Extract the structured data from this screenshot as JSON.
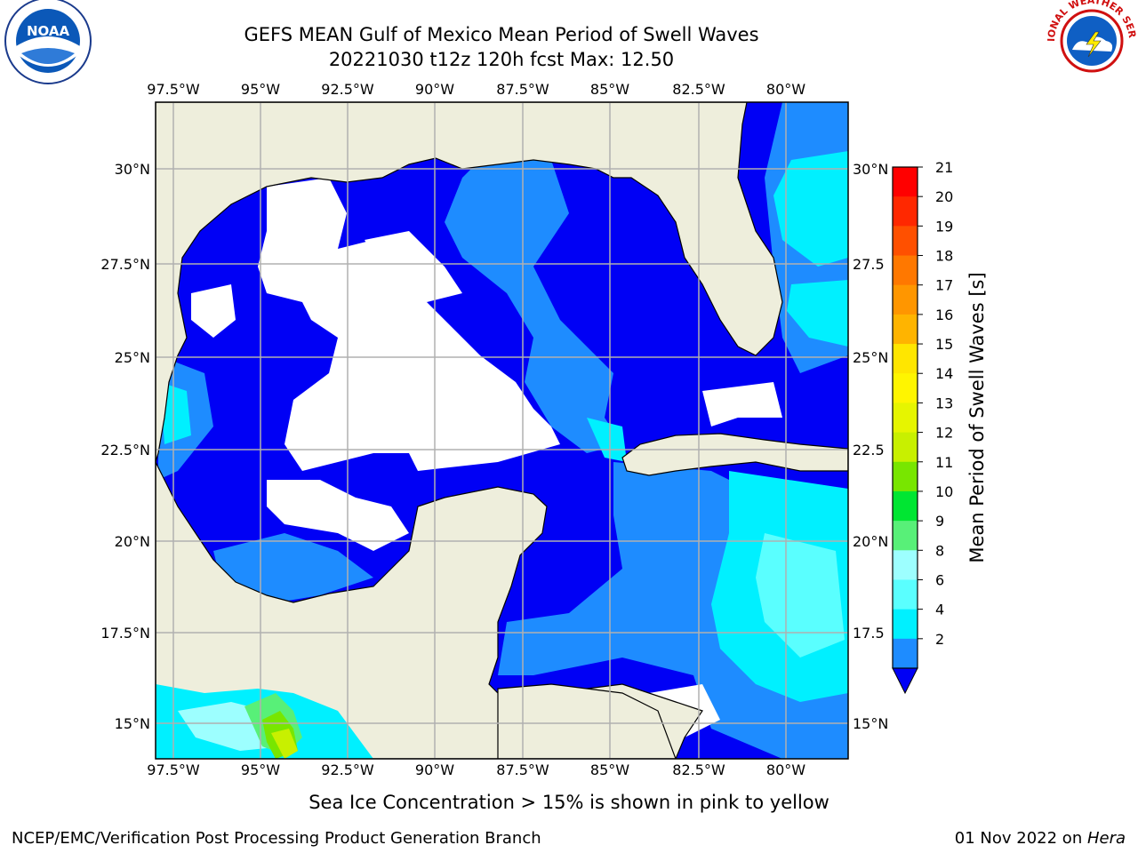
{
  "title": {
    "line1": "GEFS MEAN Gulf of Mexico Mean Period of Swell Waves",
    "line2": "20221030 t12z 120h fcst   Max: 12.50"
  },
  "map": {
    "lon_labels": [
      "97.5°W",
      "95°W",
      "92.5°W",
      "90°W",
      "87.5°W",
      "85°W",
      "82.5°W",
      "80°W"
    ],
    "lat_labels_left": [
      "30°N",
      "27.5°N",
      "25°N",
      "22.5°N",
      "20°N",
      "17.5°N",
      "15°N"
    ],
    "lat_labels_right": [
      "30°N",
      "27.5",
      "25°N",
      "22.5",
      "20°N",
      "17.5",
      "15°N"
    ],
    "colors": {
      "land": "#eeeedc",
      "ocean_white": "#ffffff",
      "period_2_4": "#0000f5",
      "period_4_6": "#1e8cff",
      "period_6_8": "#00f0ff",
      "period_8_9": "#5affff",
      "period_9_10": "#9dffff",
      "period_10_11": "#58f078",
      "period_11_12": "#00e632",
      "period_12_13": "#78e600",
      "period_13_14": "#c8f000",
      "grid": "#b0b0b0"
    }
  },
  "colorbar": {
    "label": "Mean Period of Swell Waves [s]",
    "ticks": [
      "21",
      "20",
      "19",
      "18",
      "17",
      "16",
      "15",
      "14",
      "13",
      "12",
      "11",
      "10",
      "9",
      "8",
      "6",
      "4",
      "2"
    ],
    "colors": [
      "#ff0000",
      "#ff2800",
      "#ff5000",
      "#ff7800",
      "#ff9600",
      "#ffb400",
      "#ffe600",
      "#fff500",
      "#e6f500",
      "#c8f000",
      "#78e600",
      "#00e632",
      "#58f078",
      "#9dffff",
      "#5affff",
      "#00f0ff",
      "#1e8cff"
    ],
    "under_color": "#0000f5"
  },
  "caption": "Sea Ice Concentration > 15% is shown in pink to yellow",
  "footer": {
    "left": "NCEP/EMC/Verification Post Processing Product Generation Branch",
    "date": "01 Nov 2022 on ",
    "host": "Hera"
  },
  "logos": {
    "noaa": "NOAA",
    "nws_ring": "NATIONAL WEATHER SERVICE"
  }
}
